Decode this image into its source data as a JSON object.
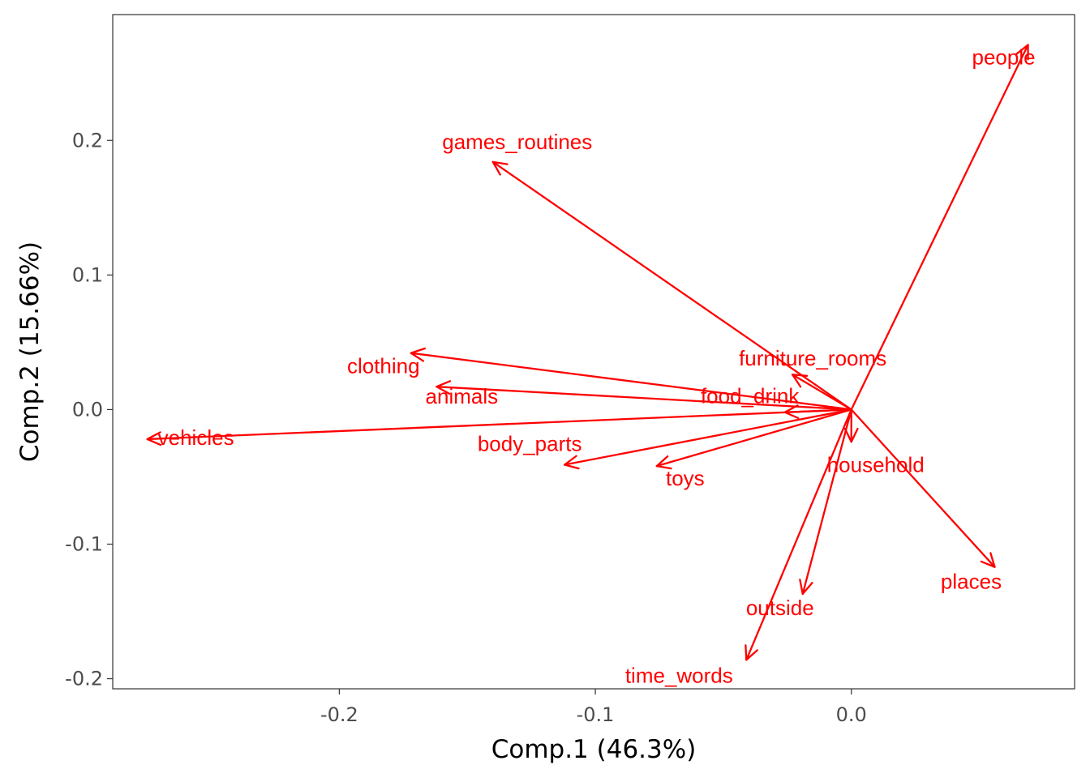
{
  "chart_data": {
    "type": "scatter",
    "subtype": "biplot-arrows",
    "title": "",
    "xlabel": "Comp.1 (46.3%)",
    "ylabel": "Comp.2 (15.66%)",
    "xlim": [
      -0.2885,
      0.0872
    ],
    "ylim": [
      -0.2075,
      0.2935
    ],
    "x_ticks": [
      -0.2,
      -0.1,
      0.0
    ],
    "x_tick_labels": [
      "-0.2",
      "-0.1",
      "0.0"
    ],
    "y_ticks": [
      -0.2,
      -0.1,
      0.0,
      0.1,
      0.2
    ],
    "y_tick_labels": [
      "-0.2",
      "-0.1",
      "0.0",
      "0.1",
      "0.2"
    ],
    "grid": false,
    "origin": [
      0,
      0
    ],
    "color": "#ff0000",
    "series": [
      {
        "label": "people",
        "x": 0.069,
        "y": 0.271
      },
      {
        "label": "games_routines",
        "x": -0.14,
        "y": 0.184
      },
      {
        "label": "furniture_rooms",
        "x": -0.023,
        "y": 0.026
      },
      {
        "label": "food_drink",
        "x": -0.026,
        "y": -0.002
      },
      {
        "label": "clothing",
        "x": -0.172,
        "y": 0.042
      },
      {
        "label": "animals",
        "x": -0.162,
        "y": 0.017
      },
      {
        "label": "vehicles",
        "x": -0.275,
        "y": -0.022
      },
      {
        "label": "body_parts",
        "x": -0.112,
        "y": -0.041
      },
      {
        "label": "toys",
        "x": -0.076,
        "y": -0.042
      },
      {
        "label": "household",
        "x": 0.0,
        "y": -0.024
      },
      {
        "label": "places",
        "x": 0.056,
        "y": -0.117
      },
      {
        "label": "outside",
        "x": -0.019,
        "y": -0.137
      },
      {
        "label": "time_words",
        "x": -0.041,
        "y": -0.186
      }
    ]
  }
}
